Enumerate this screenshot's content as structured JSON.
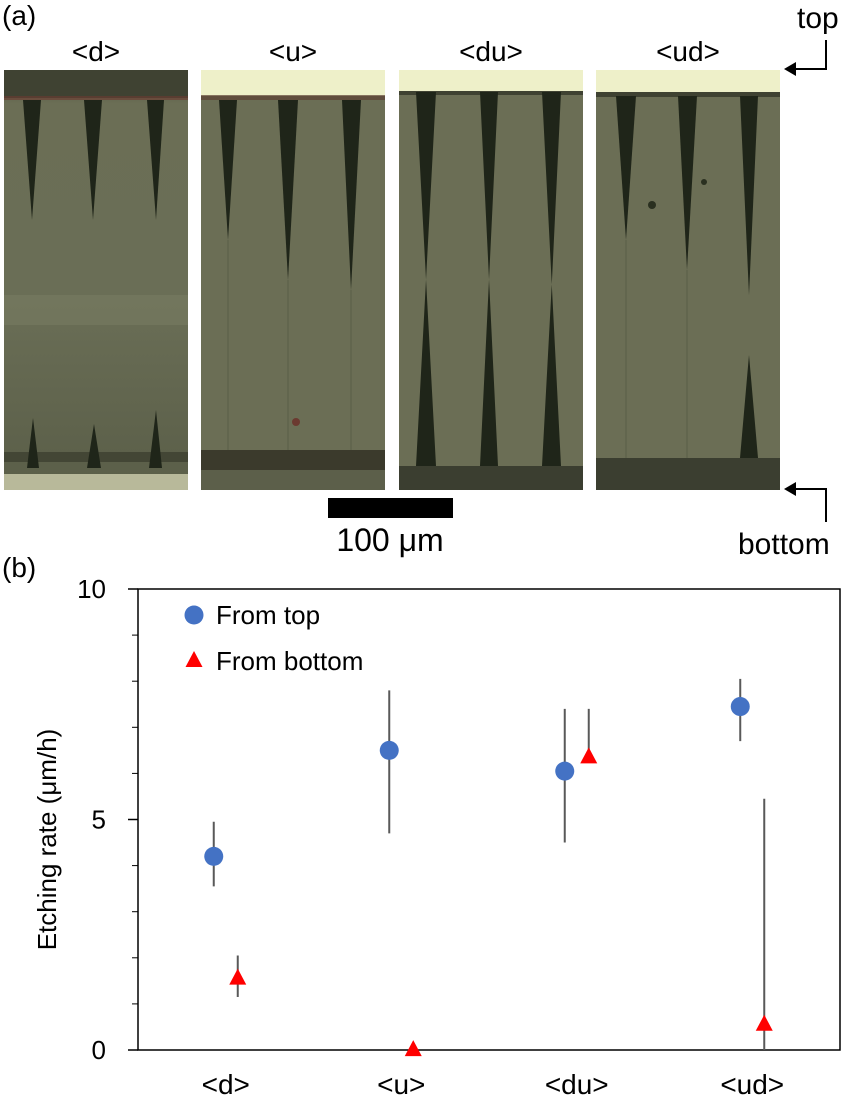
{
  "panel_a": {
    "label": "(a)",
    "samples": [
      "<d>",
      "<u>",
      "<du>",
      "<ud>"
    ],
    "top_label": "top",
    "bottom_label": "bottom",
    "scale_bar_label": "100 μm"
  },
  "panel_b": {
    "label": "(b)"
  },
  "chart_data": {
    "type": "scatter",
    "categories": [
      "<d>",
      "<u>",
      "<du>",
      "<ud>"
    ],
    "ylabel": "Etching rate (μm/h)",
    "xlabel": "",
    "ylim": [
      0,
      10
    ],
    "yticks_major": [
      0,
      5,
      10
    ],
    "yticks_minor": [
      1,
      2,
      3,
      4,
      6,
      7,
      8,
      9
    ],
    "grid": false,
    "legend_position": "top-left",
    "series": [
      {
        "name": "From top",
        "marker": "circle",
        "color": "#4472C4",
        "values": [
          4.2,
          6.5,
          6.05,
          7.45
        ],
        "err_low": [
          3.55,
          4.7,
          4.5,
          6.7
        ],
        "err_high": [
          4.95,
          7.8,
          7.4,
          8.05
        ]
      },
      {
        "name": "From bottom",
        "marker": "triangle",
        "color": "#FF0000",
        "values": [
          1.55,
          0.0,
          6.35,
          0.55
        ],
        "err_low": [
          1.15,
          0.0,
          6.35,
          0.0
        ],
        "err_high": [
          2.05,
          0.0,
          7.4,
          5.45
        ]
      }
    ]
  }
}
